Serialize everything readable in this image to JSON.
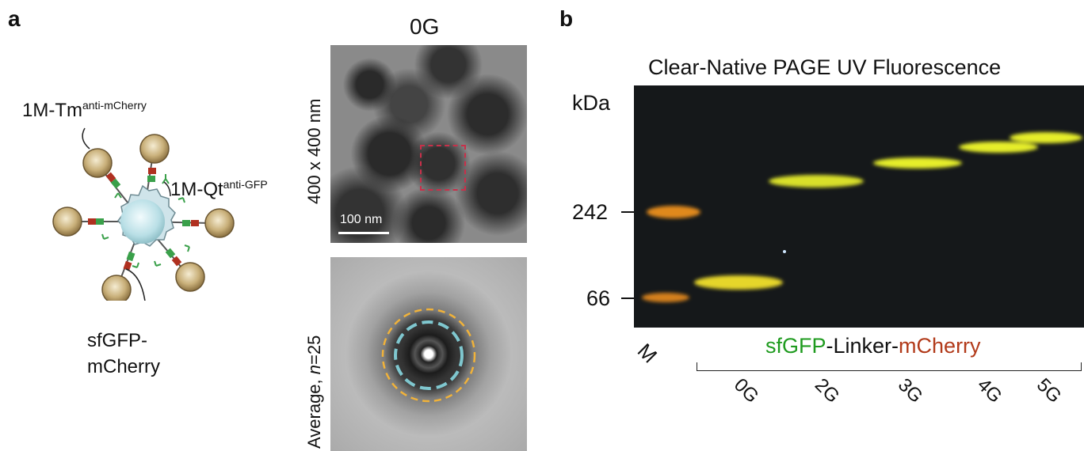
{
  "panel_a": {
    "letter": "a",
    "labels": {
      "tm_main": "1M-Tm",
      "tm_sup": "anti-mCherry",
      "qt_main": "1M-Qt",
      "qt_sup": "anti-GFP",
      "fusion_line1": "sfGFP-",
      "fusion_line2": "mCherry"
    },
    "tem": {
      "title": "0G",
      "side_label_top": "400 x 400 nm",
      "scalebar": "100 nm",
      "side_label_bottom_pre": "Average, ",
      "side_label_bottom_n": "n",
      "side_label_bottom_post": "=25"
    }
  },
  "panel_b": {
    "letter": "b",
    "title": "Clear-Native PAGE UV Fluorescence",
    "unit": "kDa",
    "markers": [
      "242",
      "66"
    ],
    "marker_lane": "M",
    "bracket_label": {
      "part1": "sfGFP",
      "part2": "-Linker-",
      "part3": "mCherry"
    },
    "lanes": [
      "0G",
      "2G",
      "3G",
      "4G",
      "5G"
    ]
  },
  "colors": {
    "gfp_green": "#1f9b1f",
    "mcherry_red": "#b23a1a",
    "gel_bg": "#15181a",
    "band_yellow": "#e6ee2a",
    "band_orange": "#e0891a",
    "ring_orange": "#f0b23a",
    "ring_cyan": "#7fc7cf",
    "box_red": "#c8304a"
  }
}
